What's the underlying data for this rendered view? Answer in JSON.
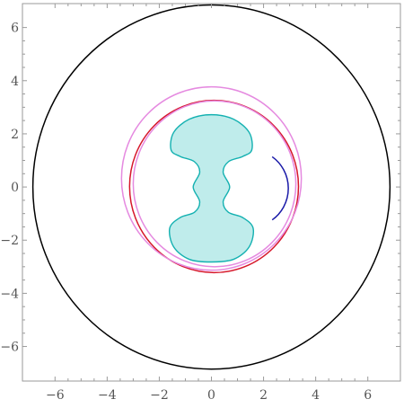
{
  "chart_data": {
    "type": "region-plot",
    "title": "",
    "xlabel": "",
    "ylabel": "",
    "xlim": [
      -7.25,
      7.25
    ],
    "ylim": [
      -7.3,
      6.9
    ],
    "grid": false,
    "x_ticks": [
      {
        "value": -6,
        "label": "−6"
      },
      {
        "value": -4,
        "label": "−4"
      },
      {
        "value": -2,
        "label": "−2"
      },
      {
        "value": 0,
        "label": "0"
      },
      {
        "value": 2,
        "label": "2"
      },
      {
        "value": 4,
        "label": "4"
      },
      {
        "value": 6,
        "label": "6"
      }
    ],
    "y_ticks": [
      {
        "value": -6,
        "label": "−6"
      },
      {
        "value": -4,
        "label": "−4"
      },
      {
        "value": -2,
        "label": "−2"
      },
      {
        "value": 0,
        "label": "0"
      },
      {
        "value": 2,
        "label": "2"
      },
      {
        "value": 4,
        "label": "4"
      },
      {
        "value": 6,
        "label": "6"
      }
    ],
    "circles": [
      {
        "name": "black-circle",
        "cx": 0,
        "cy": 0,
        "r": 6.85,
        "color": "#000000"
      },
      {
        "name": "red-circle",
        "cx": 0.1,
        "cy": 0.02,
        "r": 3.24,
        "color": "#d6172a"
      },
      {
        "name": "pink-circle",
        "cx": 0,
        "cy": 0.32,
        "r": 3.45,
        "color": "#e58ae0"
      },
      {
        "name": "pink-inner-circle",
        "cx": 0.12,
        "cy": 0.12,
        "r": 3.12,
        "color": "#e58ae0"
      }
    ],
    "region": {
      "fill": "#bfeceb",
      "stroke": "#14b1b1",
      "points": [
        [
          0,
          2.72
        ],
        [
          0.85,
          2.55
        ],
        [
          1.45,
          2.05
        ],
        [
          1.55,
          1.4
        ],
        [
          1.2,
          1.15
        ],
        [
          0.65,
          0.95
        ],
        [
          0.45,
          0.55
        ],
        [
          0.7,
          0.0
        ],
        [
          0.45,
          -0.55
        ],
        [
          0.65,
          -0.95
        ],
        [
          1.2,
          -1.15
        ],
        [
          1.6,
          -1.55
        ],
        [
          1.45,
          -2.25
        ],
        [
          0.85,
          -2.72
        ],
        [
          0,
          -2.82
        ],
        [
          -0.85,
          -2.72
        ],
        [
          -1.45,
          -2.25
        ],
        [
          -1.6,
          -1.55
        ],
        [
          -1.2,
          -1.15
        ],
        [
          -0.65,
          -0.95
        ],
        [
          -0.45,
          -0.55
        ],
        [
          -0.7,
          0.0
        ],
        [
          -0.45,
          0.55
        ],
        [
          -0.65,
          0.95
        ],
        [
          -1.2,
          1.15
        ],
        [
          -1.55,
          1.4
        ],
        [
          -1.45,
          2.05
        ],
        [
          -0.85,
          2.55
        ]
      ]
    },
    "arc": {
      "name": "blue-arc",
      "color": "#1a1aa8",
      "cx": 1.5,
      "cy": -0.05,
      "r": 1.45,
      "start_deg": -55,
      "end_deg": 55
    }
  }
}
